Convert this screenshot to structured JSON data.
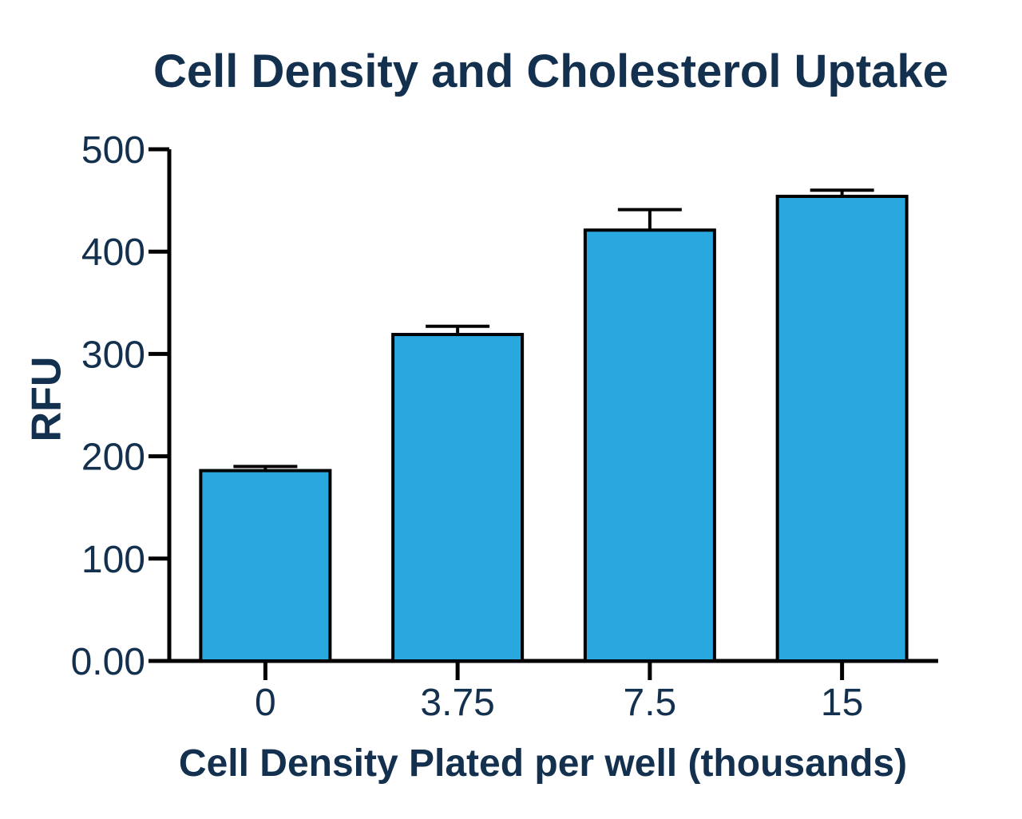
{
  "chart_data": {
    "type": "bar",
    "title": "Cell Density and Cholesterol Uptake",
    "xlabel": "Cell Density Plated per well (thousands)",
    "ylabel": "RFU",
    "categories": [
      "0",
      "3.75",
      "7.5",
      "15"
    ],
    "values": [
      186,
      319,
      421,
      454
    ],
    "error_upper": [
      4,
      8,
      20,
      6
    ],
    "ylim": [
      0,
      500
    ],
    "yticks": [
      0,
      100,
      200,
      300,
      400,
      500
    ],
    "ytick_labels": [
      "0.00",
      "100",
      "200",
      "300",
      "400",
      "500"
    ],
    "bar_color": "#29a7df",
    "grid": false,
    "legend": "none"
  }
}
